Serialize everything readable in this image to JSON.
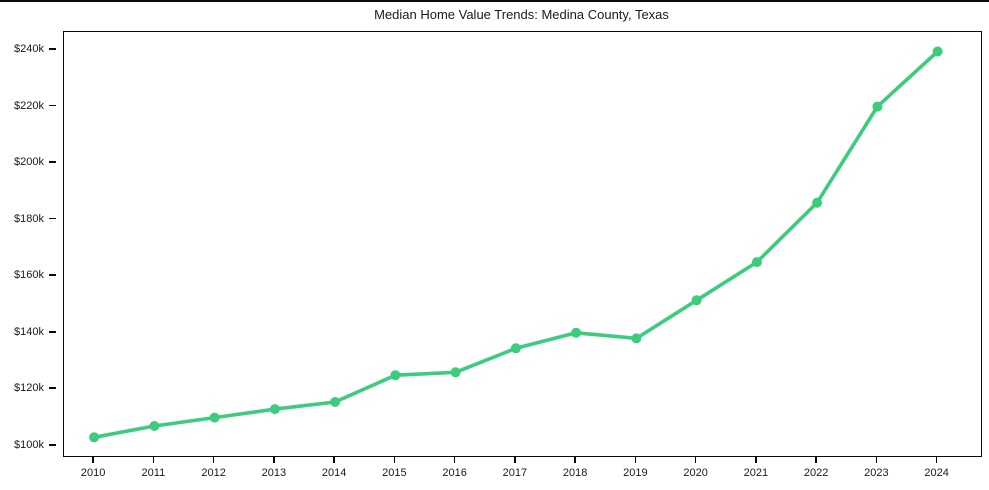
{
  "page": {
    "title": "Median Home Value Trends: Medina County, Texas"
  },
  "chart_data": {
    "type": "line",
    "title": "Median Home Value Trends: Medina County, Texas",
    "x": [
      2010,
      2011,
      2012,
      2013,
      2014,
      2015,
      2016,
      2017,
      2018,
      2019,
      2020,
      2021,
      2022,
      2023,
      2024
    ],
    "series": [
      {
        "name": "Median Home Value",
        "values": [
          103000,
          107000,
          110000,
          113000,
          115500,
          125000,
          126000,
          134500,
          140000,
          138000,
          151500,
          165000,
          186000,
          220000,
          239500
        ]
      }
    ],
    "x_tick_labels": [
      "2010",
      "2011",
      "2012",
      "2013",
      "2014",
      "2015",
      "2016",
      "2017",
      "2018",
      "2019",
      "2020",
      "2021",
      "2022",
      "2023",
      "2024"
    ],
    "y_ticks": [
      100000,
      120000,
      140000,
      160000,
      180000,
      200000,
      220000,
      240000
    ],
    "y_tick_labels": [
      "$100k",
      "$120k",
      "$140k",
      "$160k",
      "$180k",
      "$200k",
      "$220k",
      "$240k"
    ],
    "xlim": [
      2009.5,
      2024.72
    ],
    "ylim": [
      96400,
      246400
    ],
    "grid": false,
    "legend_position": "none",
    "line_color": "#3dcb7e",
    "marker": "circle",
    "marker_color": "#3dcb7e",
    "text_color": "#1a1a1a",
    "spine_color": "#0a0a0a"
  }
}
